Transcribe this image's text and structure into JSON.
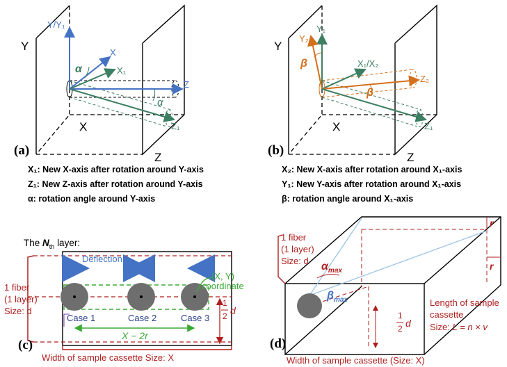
{
  "panel_a": {
    "label": "(a)",
    "axis_y": "Y",
    "axis_x": "X",
    "axis_z": "Z",
    "vec_y_y1": "Y/Y₁",
    "vec_x": "X",
    "vec_x1": "X₁",
    "vec_z": "Z",
    "vec_z1": "Z₁",
    "angle": "α",
    "legend": [
      "X₁: New X-axis after rotation around Y-axis",
      "Z₁: New Z-axis after rotation around Y-axis",
      "α:  rotation angle around Y-axis"
    ]
  },
  "panel_b": {
    "label": "(b)",
    "axis_y": "Y",
    "axis_x": "X",
    "axis_z": "Z",
    "vec_y1": "Y₁",
    "vec_y2": "Y₂",
    "vec_x1_x2": "X₁/X₂",
    "vec_z2": "Z₂",
    "vec_z1": "Z₁",
    "angle": "β",
    "legend": [
      "X₂: New X-axis after rotation around X₁-axis",
      "Y₁: New Y-axis after rotation around X₁-axis",
      "β:  rotation angle around X₁-axis"
    ]
  },
  "panel_c": {
    "label": "(c)",
    "layer_title": {
      "text_before": "The",
      "symbol": "N",
      "subscript": "th",
      "text_after": "layer:"
    },
    "deflection": "Deflection",
    "cases": [
      "Case 1",
      "Case 2",
      "Case 3"
    ],
    "coordinate": [
      "(X, Y)",
      "coordinate"
    ],
    "fiber": [
      "1 fiber",
      "(1 layer)",
      "Size: d"
    ],
    "half_d": {
      "numerator": "1",
      "denominator": "2",
      "symbol": "d"
    },
    "spacing": "X − 2r",
    "width": "Width of sample cassette Size: X"
  },
  "panel_d": {
    "label": "(d)",
    "fiber": [
      "1 fiber",
      "(1 layer)",
      "Size: d"
    ],
    "alpha_max": {
      "symbol": "α",
      "subscript": "max"
    },
    "beta_max": {
      "symbol": "β",
      "subscript": "max"
    },
    "r_labels": [
      "r",
      "r"
    ],
    "half_d": {
      "numerator": "1",
      "denominator": "2",
      "symbol": "d"
    },
    "length": [
      "Length of sample",
      "cassette"
    ],
    "length_size": {
      "text": "Size:",
      "formula": "L = n × v"
    },
    "width": "Width of sample cassette (Size: X)"
  }
}
